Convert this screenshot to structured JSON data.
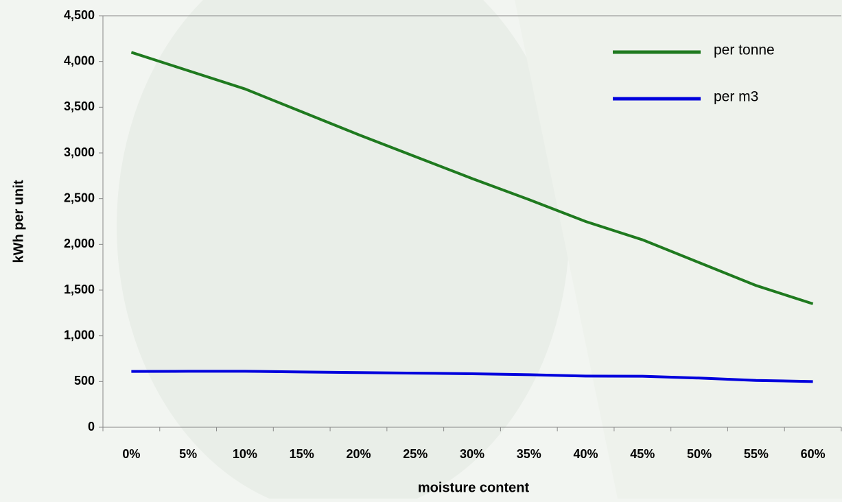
{
  "chart_data": {
    "type": "line",
    "x_label": "moisture content",
    "y_label": "kWh per unit",
    "categories": [
      "0%",
      "5%",
      "10%",
      "15%",
      "20%",
      "25%",
      "30%",
      "35%",
      "40%",
      "45%",
      "50%",
      "55%",
      "60%"
    ],
    "series": [
      {
        "name": "per tonne",
        "color": "#1f7a1f",
        "values": [
          4100,
          3900,
          3700,
          3450,
          3200,
          2960,
          2720,
          2490,
          2250,
          2050,
          1800,
          1550,
          1350
        ]
      },
      {
        "name": "per m3",
        "color": "#0000dd",
        "values": [
          610,
          612,
          612,
          605,
          598,
          592,
          585,
          575,
          560,
          558,
          538,
          512,
          500
        ]
      }
    ],
    "ylim": [
      0,
      4500
    ],
    "yticks": [
      0,
      500,
      {
        "value": 1000,
        "label": "1,000"
      },
      {
        "value": 1500,
        "label": "1,500"
      },
      {
        "value": 2000,
        "label": "2,000"
      },
      {
        "value": 2500,
        "label": "2,500"
      },
      {
        "value": 3000,
        "label": "3,000"
      },
      {
        "value": 3500,
        "label": "3,500"
      },
      {
        "value": 4000,
        "label": "4,000"
      },
      {
        "value": 4500,
        "label": "4,500"
      }
    ],
    "legend": "upper right"
  }
}
